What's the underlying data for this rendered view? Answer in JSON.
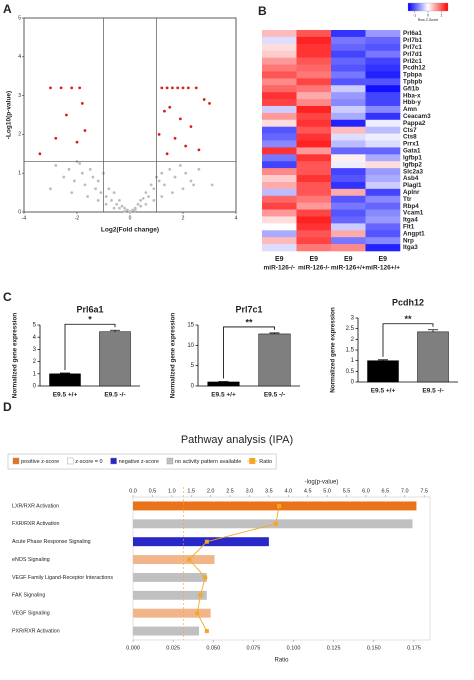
{
  "chart_data": [
    {
      "type": "scatter",
      "panel": "A",
      "xlabel": "Log2(Fold change)",
      "ylabel": "-Log10(p-value)",
      "xlim": [
        -4,
        4
      ],
      "xticks": [
        -4,
        -2,
        0,
        2,
        4
      ],
      "ylim": [
        0,
        5
      ],
      "yticks": [
        0,
        1,
        2,
        3,
        4,
        5
      ],
      "thresholds": {
        "x": [
          -1,
          1
        ],
        "y": [
          1.3
        ]
      },
      "series": [
        {
          "color": "#bdbdbd",
          "x": [
            -2.8,
            -2.5,
            -2.3,
            -2.1,
            -2.0,
            -1.8,
            -1.7,
            -1.5,
            -1.4,
            -1.3,
            -1.2,
            -1.1,
            -1.0,
            -0.9,
            -0.8,
            -0.7,
            -0.6,
            -0.5,
            -0.4,
            -0.3,
            -0.2,
            -0.1,
            0.1,
            0.2,
            0.3,
            0.4,
            0.5,
            0.6,
            0.7,
            0.8,
            0.9,
            1.0,
            1.1,
            1.2,
            1.3,
            1.5,
            1.7,
            1.9,
            2.1,
            2.3,
            2.6,
            -1.6,
            -1.2,
            -0.9,
            -0.6,
            -0.4,
            0.4,
            0.6,
            0.9,
            1.2,
            1.6,
            2.0,
            -2.2,
            2.4,
            -0.2,
            0.2,
            0.0,
            -3.0,
            3.1,
            -1.9
          ],
          "y": [
            1.2,
            0.9,
            1.1,
            0.8,
            1.3,
            1.0,
            0.7,
            1.1,
            0.9,
            0.6,
            0.8,
            0.5,
            1.0,
            0.4,
            0.6,
            0.3,
            0.5,
            0.2,
            0.3,
            0.15,
            0.1,
            0.05,
            0.05,
            0.1,
            0.2,
            0.3,
            0.35,
            0.5,
            0.4,
            0.7,
            0.6,
            0.9,
            0.8,
            1.0,
            0.7,
            1.1,
            0.9,
            1.2,
            1.0,
            0.8,
            1.1,
            0.4,
            0.3,
            0.2,
            0.1,
            0.1,
            0.15,
            0.2,
            0.3,
            0.4,
            0.5,
            0.6,
            0.5,
            0.7,
            0.02,
            0.03,
            0.01,
            0.6,
            0.7,
            1.25
          ]
        },
        {
          "color": "#d62020",
          "x": [
            -3.0,
            -2.6,
            -2.2,
            -1.9,
            -1.8,
            -2.4,
            -1.7,
            -2.0,
            -3.4,
            -2.8,
            1.2,
            1.4,
            1.6,
            1.8,
            2.0,
            2.2,
            2.5,
            2.8,
            1.3,
            1.5,
            1.9,
            2.3,
            1.1,
            1.7,
            2.1,
            2.6,
            1.4,
            3.0
          ],
          "y": [
            3.2,
            3.2,
            3.2,
            3.2,
            2.8,
            2.5,
            2.1,
            1.8,
            1.5,
            1.9,
            3.2,
            3.2,
            3.2,
            3.2,
            3.2,
            3.2,
            3.2,
            2.9,
            2.6,
            2.7,
            2.4,
            2.2,
            2.0,
            1.9,
            1.7,
            1.6,
            1.5,
            2.8
          ]
        }
      ]
    },
    {
      "type": "heatmap",
      "panel": "B",
      "colorbar_label": "Row Z-Score",
      "zlim": [
        -1.5,
        1.5
      ],
      "zticks": [
        -1,
        0,
        1
      ],
      "colors": {
        "low": "#0000ff",
        "mid": "#ffffff",
        "high": "#ff0000"
      },
      "columns": [
        {
          "line1": "E9",
          "line2": "miR-126-/-"
        },
        {
          "line1": "E9",
          "line2": "miR-126-/-"
        },
        {
          "line1": "E9",
          "line2": "miR-126+/+"
        },
        {
          "line1": "E9",
          "line2": "miR-126+/+"
        }
      ],
      "rows": [
        "Prl6a1",
        "Prl7b1",
        "Prl7c1",
        "Prl7d1",
        "Prl2c1",
        "Pcdh12",
        "Tpbpa",
        "Tpbpb",
        "Gfi1b",
        "Hba-x",
        "Hbb-y",
        "Amn",
        "Ceacam3",
        "Pappa2",
        "Cts7",
        "Cts8",
        "Prrx1",
        "Gata1",
        "Igfbp1",
        "Igfbp2",
        "Slc2a3",
        "Asb4",
        "Plagl1",
        "Aplnr",
        "Ttr",
        "Rbp4",
        "Vcam1",
        "Itga4",
        "Flt1",
        "Angpt1",
        "Nrp",
        "Itga3"
      ],
      "values": [
        [
          0.4,
          1.0,
          -1.2,
          -0.6
        ],
        [
          -0.2,
          1.3,
          -0.8,
          -0.9
        ],
        [
          0.2,
          1.2,
          -0.9,
          -1.0
        ],
        [
          0.3,
          1.2,
          -1.1,
          -0.8
        ],
        [
          0.6,
          1.0,
          -0.9,
          -1.1
        ],
        [
          0.8,
          0.9,
          -1.0,
          -1.2
        ],
        [
          1.0,
          0.8,
          -0.8,
          -1.3
        ],
        [
          0.7,
          1.1,
          -1.0,
          -1.0
        ],
        [
          0.9,
          0.8,
          -0.3,
          -1.4
        ],
        [
          1.2,
          0.5,
          -0.6,
          -1.1
        ],
        [
          1.1,
          0.7,
          -0.7,
          -1.1
        ],
        [
          -0.3,
          1.3,
          -0.3,
          -0.7
        ],
        [
          0.6,
          1.1,
          -0.5,
          -1.2
        ],
        [
          0.2,
          1.2,
          -1.3,
          -0.1
        ],
        [
          -1.0,
          1.0,
          0.4,
          -0.4
        ],
        [
          -0.9,
          1.2,
          -0.2,
          -0.1
        ],
        [
          -0.7,
          1.3,
          -0.4,
          -0.2
        ],
        [
          1.2,
          0.6,
          -0.9,
          -0.9
        ],
        [
          -0.8,
          1.2,
          0.1,
          -0.5
        ],
        [
          -1.1,
          1.0,
          -0.1,
          0.2
        ],
        [
          0.7,
          1.0,
          -1.1,
          -0.6
        ],
        [
          0.3,
          1.2,
          -1.0,
          -0.5
        ],
        [
          0.5,
          1.0,
          -1.2,
          -0.3
        ],
        [
          -0.4,
          1.0,
          0.5,
          -1.1
        ],
        [
          0.9,
          0.8,
          -1.0,
          -0.7
        ],
        [
          1.1,
          0.6,
          -0.8,
          -0.9
        ],
        [
          0.6,
          1.1,
          -1.0,
          -0.7
        ],
        [
          0.2,
          1.3,
          -0.9,
          -0.6
        ],
        [
          0.0,
          1.2,
          -0.3,
          -0.9
        ],
        [
          -0.5,
          1.0,
          0.5,
          -1.0
        ],
        [
          0.4,
          1.1,
          -0.8,
          -0.7
        ],
        [
          -0.2,
          0.8,
          0.7,
          -1.3
        ]
      ]
    },
    {
      "type": "bar",
      "panel": "C",
      "title": "Prl6a1",
      "ylabel": "Normalized gene expression",
      "categories": [
        "E9.5 +/+",
        "E9.5 -/-"
      ],
      "values": [
        1.0,
        4.45
      ],
      "errors": [
        0.06,
        0.12
      ],
      "colors": [
        "#000000",
        "#7f7f7f"
      ],
      "ylim": [
        0,
        5
      ],
      "yticks": [
        0,
        1,
        2,
        3,
        4,
        5
      ],
      "significance": "*"
    },
    {
      "type": "bar",
      "title": "Prl7c1",
      "ylabel": "Normalized gene expression",
      "categories": [
        "E9.5 +/+",
        "E9.5 -/-"
      ],
      "values": [
        1.0,
        12.8
      ],
      "errors": [
        0.1,
        0.25
      ],
      "colors": [
        "#000000",
        "#7f7f7f"
      ],
      "ylim": [
        0,
        15
      ],
      "yticks": [
        0,
        5,
        10,
        15
      ],
      "significance": "**"
    },
    {
      "type": "bar",
      "title": "Pcdh12",
      "ylabel": "Normalized gene expression",
      "categories": [
        "E9.5 +/+",
        "E9.5 -/-"
      ],
      "values": [
        1.0,
        2.35
      ],
      "errors": [
        0.04,
        0.1
      ],
      "colors": [
        "#000000",
        "#7f7f7f"
      ],
      "ylim": [
        0,
        3
      ],
      "yticks": [
        0,
        0.5,
        1,
        1.5,
        2,
        2.5,
        3
      ],
      "significance": "**"
    },
    {
      "type": "bar",
      "orientation": "horizontal",
      "panel": "D",
      "title": "Pathway analysis (IPA)",
      "legend": [
        {
          "label": "positive z-score",
          "color": "#e8731a"
        },
        {
          "label": "z-score = 0",
          "color": "#ffffff"
        },
        {
          "label": "negative z-score",
          "color": "#2828c8"
        },
        {
          "label": "no activity pattern available",
          "color": "#c0c0c0"
        }
      ],
      "categories": [
        "LXR/RXR Activation",
        "FXR/RXR Activation",
        "Acute Phase Response Signaling",
        "eNOS Signaling",
        "VEGF Family Ligand-Receptor Interactions",
        "FAK Signaling",
        "VEGF Signaling",
        "PXR/RXR Activation"
      ],
      "values": [
        7.3,
        7.2,
        3.5,
        2.1,
        1.9,
        1.9,
        2.0,
        1.7
      ],
      "colors": [
        "#e8731a",
        "#c0c0c0",
        "#2828c8",
        "#f2b58a",
        "#c0c0c0",
        "#c0c0c0",
        "#f2b58a",
        "#c0c0c0"
      ],
      "xlabel": "-log(p-value)",
      "xlim": [
        0,
        7.65
      ],
      "xticks": [
        {
          "value": 0,
          "label": "0.0"
        },
        0.5,
        {
          "value": 1,
          "label": "1.0"
        },
        1.5,
        {
          "value": 2,
          "label": "2.0"
        },
        2.5,
        {
          "value": 3,
          "label": "3.0"
        },
        3.5,
        {
          "value": 4,
          "label": "4.0"
        },
        4.5,
        {
          "value": 5,
          "label": "5.0"
        },
        5.5,
        {
          "value": 6,
          "label": "6.0"
        },
        6.5,
        {
          "value": 7,
          "label": "7.0"
        },
        7.5
      ],
      "threshold": 1.3,
      "ratio": {
        "name": "Ratio",
        "color": "#f5a623",
        "values": [
          0.091,
          0.089,
          0.046,
          0.035,
          0.045,
          0.042,
          0.04,
          0.046
        ]
      },
      "x2label": "Ratio",
      "x2lim": [
        0,
        0.185
      ],
      "x2ticks": [
        {
          "value": 0,
          "label": "0.000"
        },
        {
          "value": 0.025,
          "label": "0.025"
        },
        {
          "value": 0.05,
          "label": "0.050"
        },
        {
          "value": 0.075,
          "label": "0.075"
        },
        {
          "value": 0.1,
          "label": "0.100"
        },
        {
          "value": 0.125,
          "label": "0.125"
        },
        {
          "value": 0.15,
          "label": "0.150"
        },
        {
          "value": 0.175,
          "label": "0.175"
        }
      ]
    }
  ]
}
